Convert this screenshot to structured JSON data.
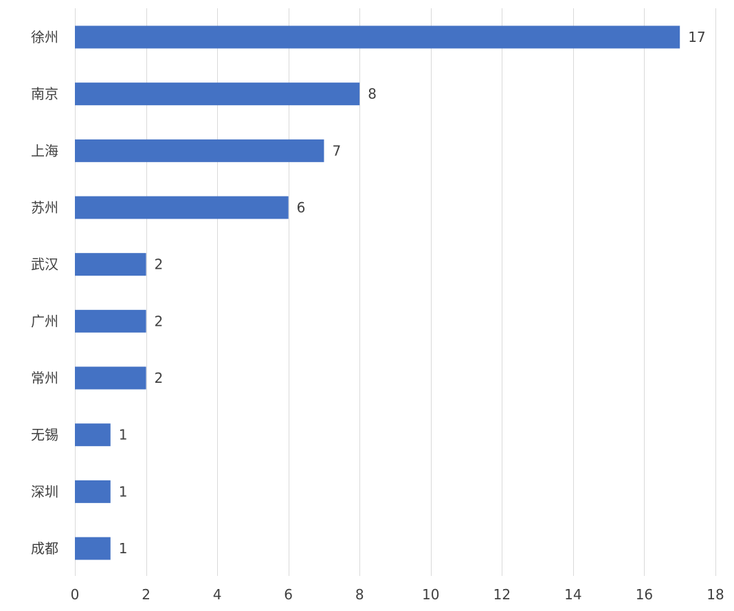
{
  "chart_data": {
    "type": "bar",
    "orientation": "horizontal",
    "title": "",
    "xlabel": "",
    "ylabel": "",
    "categories": [
      "徐州",
      "南京",
      "上海",
      "苏州",
      "武汉",
      "广州",
      "常州",
      "无锡",
      "深圳",
      "成都"
    ],
    "values": [
      17,
      8,
      7,
      6,
      2,
      2,
      2,
      1,
      1,
      1
    ],
    "data_labels": [
      "17",
      "8",
      "7",
      "6",
      "2",
      "2",
      "2",
      "1",
      "1",
      "1"
    ],
    "xlim": [
      0,
      18
    ],
    "x_ticks": [
      0,
      2,
      4,
      6,
      8,
      10,
      12,
      14,
      16,
      18
    ],
    "x_tick_labels": [
      "0",
      "2",
      "4",
      "6",
      "8",
      "10",
      "12",
      "14",
      "16",
      "18"
    ],
    "grid": "vertical",
    "legend": "none",
    "bar_color": "#4472c4",
    "grid_color": "#d9d9d9",
    "text_color": "#404040"
  }
}
